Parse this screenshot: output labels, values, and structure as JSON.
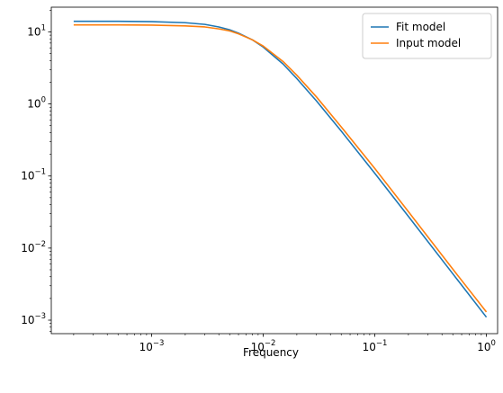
{
  "chart_data": {
    "type": "line",
    "title": "",
    "xlabel": "Frequency",
    "ylabel": "",
    "xscale": "log",
    "yscale": "log",
    "xlim": [
      0.000126,
      1.26
    ],
    "ylim": [
      0.00065,
      22
    ],
    "grid": false,
    "legend_position": "top-right",
    "x_ticks": [
      {
        "value": 0.001,
        "base": "10",
        "exp": "−3"
      },
      {
        "value": 0.01,
        "base": "10",
        "exp": "−2"
      },
      {
        "value": 0.1,
        "base": "10",
        "exp": "−1"
      },
      {
        "value": 1,
        "base": "10",
        "exp": "0"
      }
    ],
    "y_ticks": [
      {
        "value": 0.001,
        "base": "10",
        "exp": "−3"
      },
      {
        "value": 0.01,
        "base": "10",
        "exp": "−2"
      },
      {
        "value": 0.1,
        "base": "10",
        "exp": "−1"
      },
      {
        "value": 1,
        "base": "10",
        "exp": "0"
      },
      {
        "value": 10,
        "base": "10",
        "exp": "1"
      }
    ],
    "series": [
      {
        "name": "Fit model",
        "color": "#1f77b4",
        "x": [
          0.0002,
          0.0005,
          0.001,
          0.002,
          0.003,
          0.004,
          0.005,
          0.006,
          0.008,
          0.01,
          0.015,
          0.02,
          0.03,
          0.05,
          0.1,
          0.2,
          0.5,
          1.0
        ],
        "y": [
          14.0,
          14.0,
          13.85,
          13.4,
          12.7,
          11.7,
          10.7,
          9.6,
          7.75,
          6.15,
          3.6,
          2.25,
          1.1,
          0.42,
          0.109,
          0.0275,
          0.0044,
          0.0011
        ]
      },
      {
        "name": "Input model",
        "color": "#ff7f0e",
        "x": [
          0.0002,
          0.0005,
          0.001,
          0.002,
          0.003,
          0.004,
          0.005,
          0.006,
          0.008,
          0.01,
          0.015,
          0.02,
          0.03,
          0.05,
          0.1,
          0.2,
          0.5,
          1.0
        ],
        "y": [
          12.5,
          12.5,
          12.4,
          12.1,
          11.7,
          11.0,
          10.3,
          9.4,
          7.75,
          6.35,
          3.9,
          2.5,
          1.25,
          0.48,
          0.127,
          0.032,
          0.0051,
          0.0013
        ]
      }
    ]
  }
}
